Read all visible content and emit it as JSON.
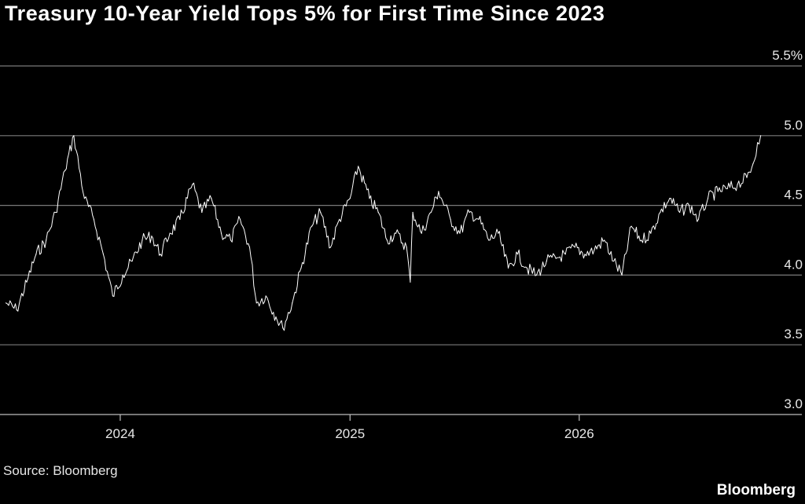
{
  "title": "Treasury 10-Year Yield Tops 5% for First Time Since 2023",
  "source": "Source: Bloomberg",
  "brand": "Bloomberg",
  "colors": {
    "background": "#000000",
    "line": "#ffffff",
    "grid": "#7a7a7a",
    "text": "#e8e8e8"
  },
  "chart_data": {
    "type": "line",
    "title": "Treasury 10-Year Yield Tops 5% for First Time Since 2023",
    "xlabel": "",
    "ylabel": "",
    "ylim": [
      3.0,
      5.5
    ],
    "y_ticks": [
      {
        "value": 5.5,
        "label": "5.5%"
      },
      {
        "value": 5.0,
        "label": "5.0"
      },
      {
        "value": 4.5,
        "label": "4.5"
      },
      {
        "value": 4.0,
        "label": "4.0"
      },
      {
        "value": 3.5,
        "label": "3.5"
      },
      {
        "value": 3.0,
        "label": "3.0"
      }
    ],
    "xlim": [
      "2023-07-01",
      "2026-10-20"
    ],
    "x_ticks": [
      {
        "value": "2024-01-01",
        "label": "2024"
      },
      {
        "value": "2025-01-01",
        "label": "2025"
      },
      {
        "value": "2026-01-01",
        "label": "2026"
      }
    ],
    "grid": "horizontal",
    "series": [
      {
        "x": [
          "2023-07-03",
          "2023-07-20",
          "2023-08-05",
          "2023-08-20",
          "2023-09-05",
          "2023-09-20",
          "2023-10-05",
          "2023-10-19",
          "2023-11-05",
          "2023-11-20",
          "2023-12-05",
          "2023-12-20",
          "2024-01-05",
          "2024-01-20",
          "2024-02-05",
          "2024-02-20",
          "2024-03-05",
          "2024-03-20",
          "2024-04-05",
          "2024-04-25",
          "2024-05-10",
          "2024-05-25",
          "2024-06-10",
          "2024-06-25",
          "2024-07-10",
          "2024-07-25",
          "2024-08-05",
          "2024-08-20",
          "2024-09-05",
          "2024-09-16",
          "2024-10-01",
          "2024-10-15",
          "2024-11-01",
          "2024-11-15",
          "2024-12-01",
          "2024-12-15",
          "2025-01-01",
          "2025-01-14",
          "2025-02-01",
          "2025-02-15",
          "2025-03-01",
          "2025-03-15",
          "2025-04-01",
          "2025-04-07",
          "2025-04-11",
          "2025-04-25",
          "2025-05-10",
          "2025-05-22",
          "2025-06-10",
          "2025-06-25",
          "2025-07-10",
          "2025-07-25",
          "2025-08-10",
          "2025-08-25",
          "2025-09-10",
          "2025-09-25",
          "2025-10-10",
          "2025-10-25",
          "2025-11-10",
          "2025-11-25",
          "2025-12-10",
          "2025-12-25",
          "2026-01-10",
          "2026-01-25",
          "2026-02-10",
          "2026-02-25",
          "2026-03-10",
          "2026-03-25",
          "2026-04-10",
          "2026-04-25",
          "2026-05-10",
          "2026-05-25",
          "2026-06-10",
          "2026-06-25",
          "2026-07-10",
          "2026-07-25",
          "2026-08-10",
          "2026-08-25",
          "2026-09-10",
          "2026-09-25",
          "2026-10-05",
          "2026-10-12",
          "2026-10-17"
        ],
        "values": [
          3.8,
          3.75,
          3.95,
          4.15,
          4.25,
          4.45,
          4.75,
          5.0,
          4.55,
          4.4,
          4.15,
          3.85,
          4.0,
          4.1,
          4.25,
          4.28,
          4.15,
          4.3,
          4.4,
          4.65,
          4.45,
          4.55,
          4.3,
          4.25,
          4.4,
          4.2,
          3.8,
          3.85,
          3.7,
          3.62,
          3.8,
          4.05,
          4.35,
          4.45,
          4.2,
          4.4,
          4.55,
          4.78,
          4.55,
          4.45,
          4.25,
          4.3,
          4.2,
          3.95,
          4.45,
          4.3,
          4.45,
          4.6,
          4.4,
          4.3,
          4.45,
          4.4,
          4.25,
          4.3,
          4.05,
          4.15,
          4.05,
          4.0,
          4.1,
          4.12,
          4.15,
          4.2,
          4.15,
          4.18,
          4.25,
          4.1,
          4.0,
          4.35,
          4.25,
          4.3,
          4.45,
          4.55,
          4.45,
          4.5,
          4.4,
          4.55,
          4.6,
          4.62,
          4.65,
          4.7,
          4.8,
          4.95,
          5.0
        ]
      }
    ]
  }
}
